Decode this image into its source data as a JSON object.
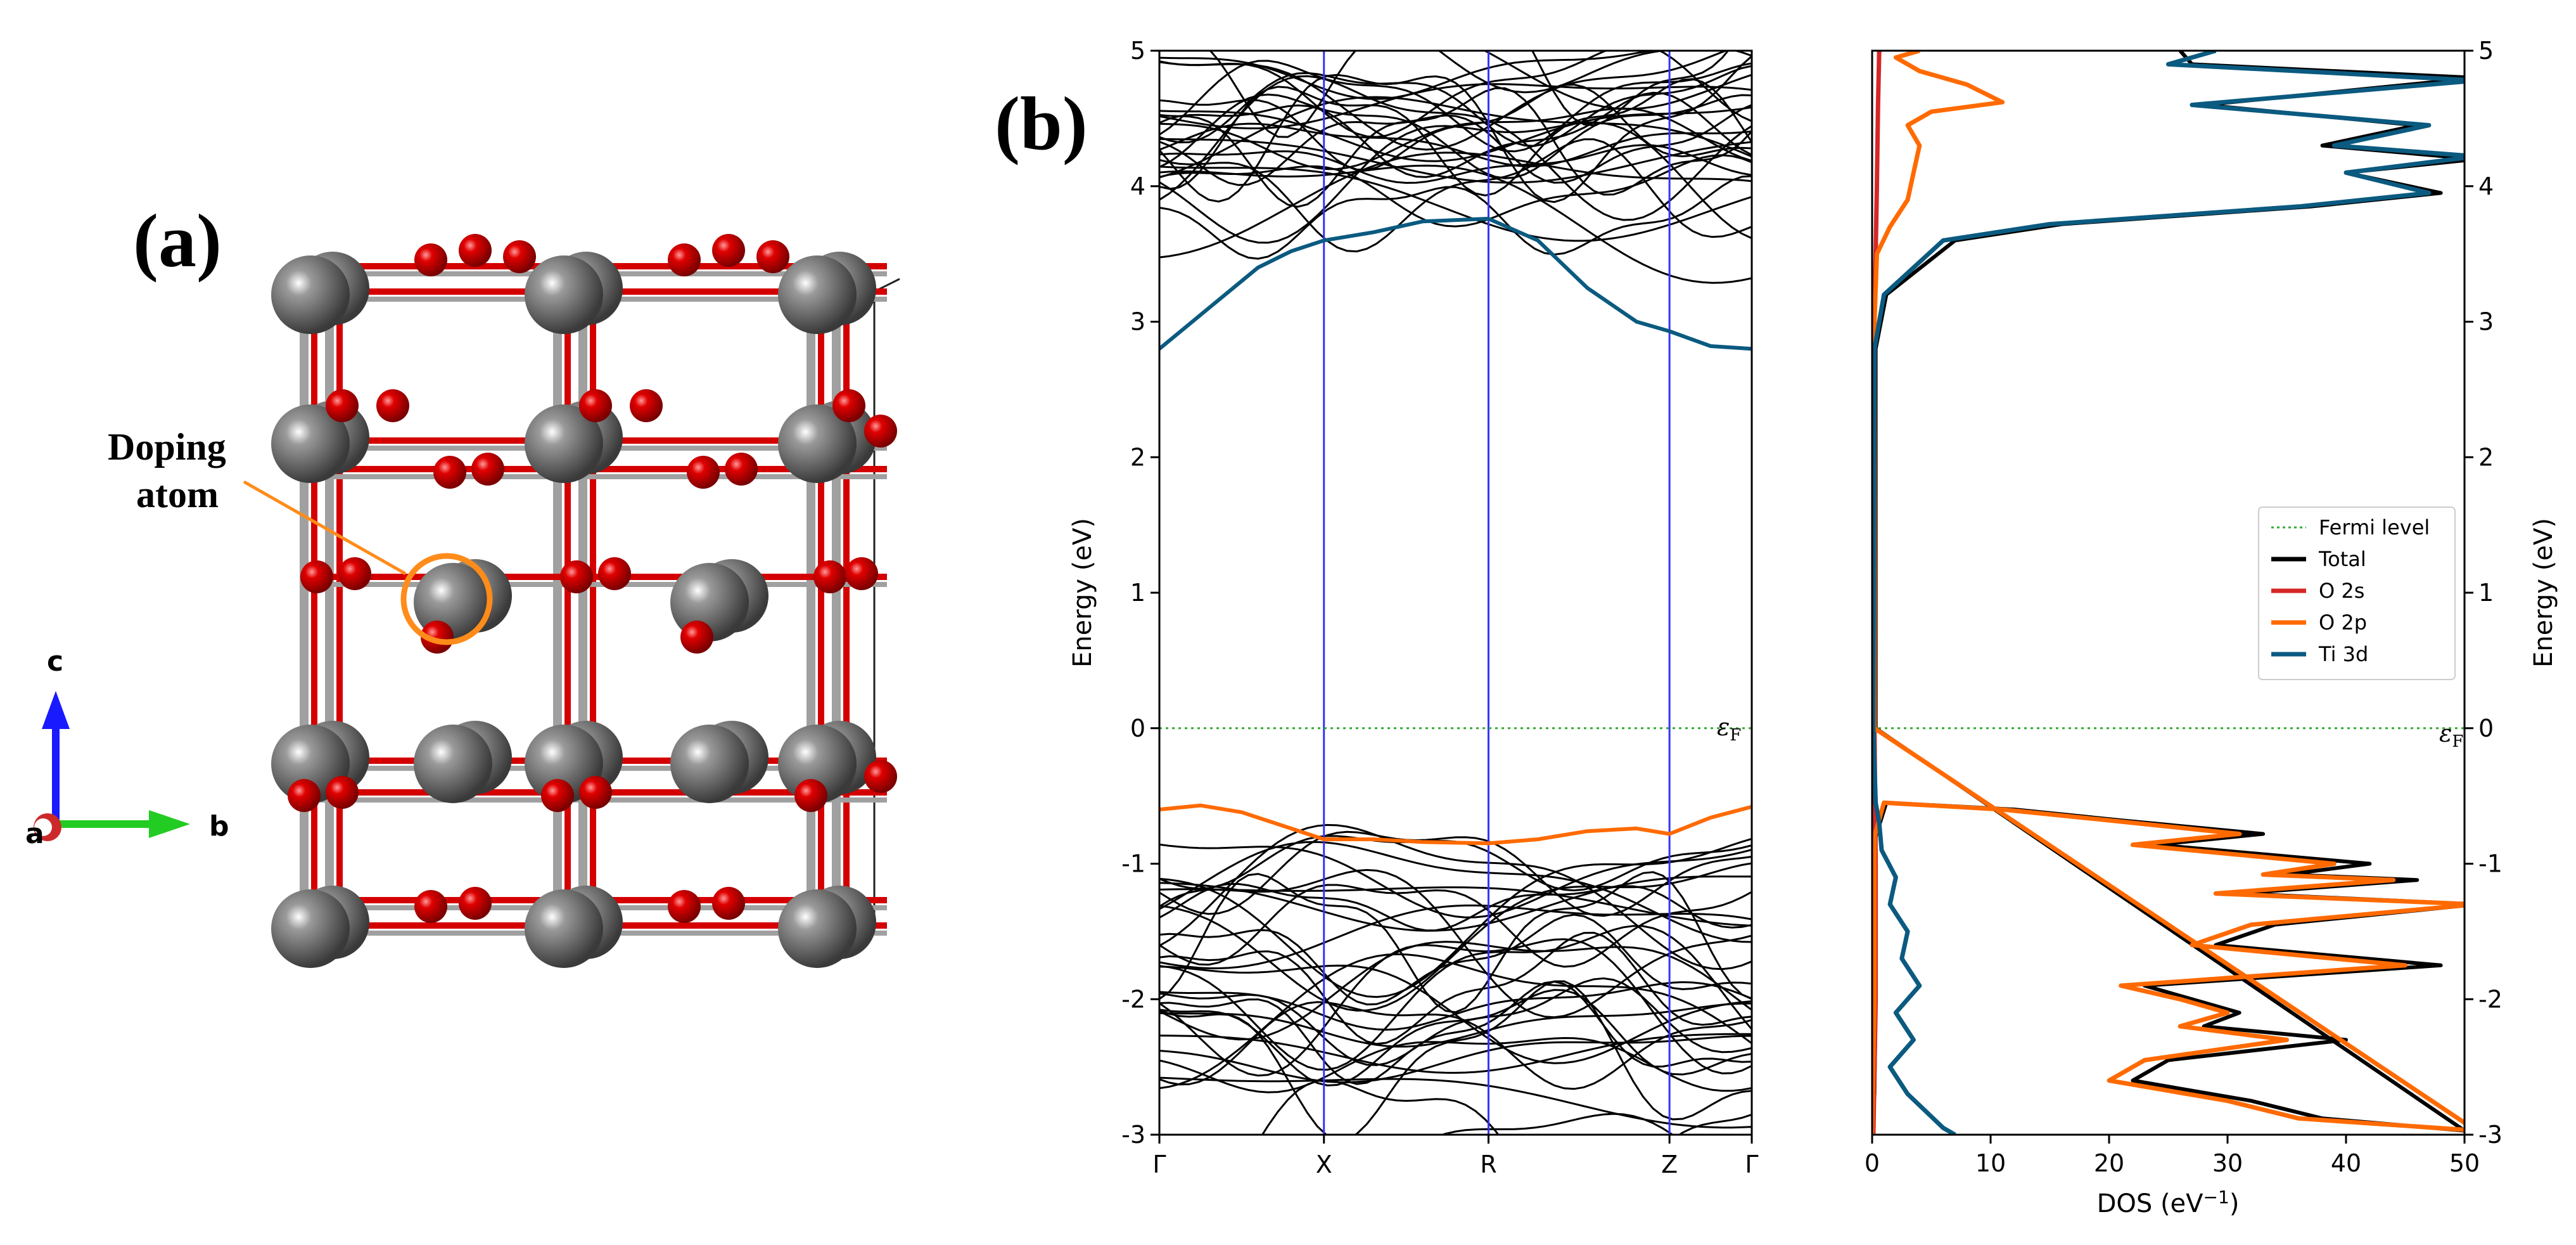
{
  "panels": {
    "a": {
      "label": "(a)"
    },
    "b": {
      "label": "(b)"
    }
  },
  "crystal": {
    "annotation_line1": "Doping",
    "annotation_line2": "atom",
    "axes": {
      "c": "c",
      "b": "b",
      "a": "a"
    },
    "colors": {
      "ti_atom": "#6e6e6e",
      "o_atom": "#d40000",
      "bond_gray": "#9a9a9a",
      "highlight": "#ff8c1a",
      "axis_c": "#1a1aff",
      "axis_b": "#22cc22"
    }
  },
  "chart_data": [
    {
      "type": "line",
      "title": "",
      "xlabel": "",
      "ylabel": "Energy (eV)",
      "ylim": [
        -3,
        5
      ],
      "y_ticks": [
        "-3",
        "-2",
        "-1",
        "0",
        "1",
        "2",
        "3",
        "4",
        "5"
      ],
      "k_points": [
        "Γ",
        "X",
        "R",
        "Z",
        "Γ"
      ],
      "k_positions": [
        0,
        1,
        2,
        3.1,
        3.6
      ],
      "fermi_label": "ε",
      "fermi_sub": "F",
      "fermi_energy": 0,
      "colors": {
        "bands": "#000000",
        "cbm": "#0b5a80",
        "vbm": "#ff6a00",
        "kline": "#3333ff",
        "fermi": "#33aa33"
      },
      "highlighted_bands": [
        {
          "name": "conduction band minimum",
          "color": "#0b5a80",
          "x": [
            0,
            0.3,
            0.6,
            0.8,
            1.0,
            1.3,
            1.6,
            2.0,
            2.3,
            2.6,
            2.9,
            3.1,
            3.35,
            3.6
          ],
          "y": [
            2.8,
            3.1,
            3.4,
            3.52,
            3.6,
            3.66,
            3.74,
            3.76,
            3.6,
            3.25,
            3.0,
            2.93,
            2.82,
            2.8
          ]
        },
        {
          "name": "valence band maximum",
          "color": "#ff6a00",
          "x": [
            0,
            0.25,
            0.5,
            0.8,
            1.0,
            1.3,
            1.6,
            2.0,
            2.3,
            2.6,
            2.9,
            3.1,
            3.35,
            3.6
          ],
          "y": [
            -0.6,
            -0.57,
            -0.62,
            -0.74,
            -0.82,
            -0.82,
            -0.84,
            -0.85,
            -0.82,
            -0.76,
            -0.74,
            -0.78,
            -0.66,
            -0.58
          ]
        }
      ]
    },
    {
      "type": "line",
      "title": "",
      "xlabel": "DOS (eV",
      "xlabel_sup": "−1",
      "xlabel_tail": ")",
      "ylabel": "Energy (eV)",
      "xlim": [
        0,
        50
      ],
      "ylim": [
        -3,
        5
      ],
      "x_ticks": [
        "0",
        "10",
        "20",
        "30",
        "40",
        "50"
      ],
      "y_ticks": [
        "-3",
        "-2",
        "-1",
        "0",
        "1",
        "2",
        "3",
        "4",
        "5"
      ],
      "fermi_label": "ε",
      "fermi_sub": "F",
      "legend": {
        "position": "right",
        "entries": [
          {
            "label": "Fermi level",
            "color": "#33aa33",
            "style": "dotted"
          },
          {
            "label": "Total",
            "color": "#000000",
            "style": "solid"
          },
          {
            "label": "O 2s",
            "color": "#d62728",
            "style": "solid"
          },
          {
            "label": "O 2p",
            "color": "#ff6a00",
            "style": "solid"
          },
          {
            "label": "Ti 3d",
            "color": "#0b5a80",
            "style": "solid"
          }
        ]
      },
      "series": [
        {
          "name": "Total",
          "color": "#000000",
          "points": [
            [
              0,
              -3
            ],
            [
              0.2,
              -2.7
            ],
            [
              0.3,
              -2.0
            ],
            [
              0.2,
              -1.2
            ],
            [
              0.3,
              -0.8
            ],
            [
              1.2,
              -0.55
            ],
            [
              12,
              -0.6
            ],
            [
              21,
              -0.68
            ],
            [
              33,
              -0.78
            ],
            [
              24,
              -0.86
            ],
            [
              42,
              -1.0
            ],
            [
              35,
              -1.08
            ],
            [
              46,
              -1.12
            ],
            [
              31,
              -1.22
            ],
            [
              51,
              -1.3
            ],
            [
              34,
              -1.45
            ],
            [
              29,
              -1.6
            ],
            [
              48,
              -1.75
            ],
            [
              23,
              -1.9
            ],
            [
              27,
              -2.0
            ],
            [
              31,
              -2.1
            ],
            [
              28,
              -2.2
            ],
            [
              40,
              -2.3
            ],
            [
              25,
              -2.45
            ],
            [
              22,
              -2.6
            ],
            [
              32,
              -2.75
            ],
            [
              38,
              -2.88
            ],
            [
              50,
              -2.97
            ],
            [
              0.3,
              0
            ],
            [
              0.3,
              2.8
            ],
            [
              1.2,
              3.2
            ],
            [
              7,
              3.6
            ],
            [
              16,
              3.72
            ],
            [
              37,
              3.85
            ],
            [
              48,
              3.95
            ],
            [
              40,
              4.1
            ],
            [
              51,
              4.2
            ],
            [
              38,
              4.3
            ],
            [
              46,
              4.45
            ],
            [
              28,
              4.6
            ],
            [
              51,
              4.8
            ],
            [
              27,
              4.9
            ],
            [
              26,
              5.0
            ]
          ]
        },
        {
          "name": "O 2s",
          "color": "#d62728",
          "points": [
            [
              0.1,
              -3
            ],
            [
              0.3,
              -2.0
            ],
            [
              0.3,
              -1.0
            ],
            [
              0.2,
              0
            ],
            [
              0.2,
              3.0
            ],
            [
              0.4,
              4.0
            ],
            [
              0.5,
              4.6
            ],
            [
              0.6,
              5.0
            ]
          ]
        },
        {
          "name": "O 2p",
          "color": "#ff6a00",
          "points": [
            [
              0,
              -3
            ],
            [
              0.2,
              -2.0
            ],
            [
              0.2,
              -0.8
            ],
            [
              1.0,
              -0.55
            ],
            [
              11,
              -0.6
            ],
            [
              20,
              -0.68
            ],
            [
              31,
              -0.78
            ],
            [
              22,
              -0.86
            ],
            [
              39,
              -1.0
            ],
            [
              33,
              -1.08
            ],
            [
              44,
              -1.12
            ],
            [
              29,
              -1.22
            ],
            [
              51,
              -1.3
            ],
            [
              32,
              -1.45
            ],
            [
              27,
              -1.6
            ],
            [
              45,
              -1.75
            ],
            [
              21,
              -1.9
            ],
            [
              26,
              -2.0
            ],
            [
              30,
              -2.1
            ],
            [
              26,
              -2.2
            ],
            [
              35,
              -2.3
            ],
            [
              23,
              -2.45
            ],
            [
              20,
              -2.6
            ],
            [
              30,
              -2.75
            ],
            [
              36,
              -2.88
            ],
            [
              51,
              -2.97
            ],
            [
              0.2,
              0
            ],
            [
              0.2,
              3.0
            ],
            [
              0.4,
              3.5
            ],
            [
              1.5,
              3.7
            ],
            [
              3,
              3.9
            ],
            [
              3.5,
              4.1
            ],
            [
              4,
              4.3
            ],
            [
              3,
              4.45
            ],
            [
              5,
              4.55
            ],
            [
              11,
              4.62
            ],
            [
              8,
              4.75
            ],
            [
              4,
              4.85
            ],
            [
              2,
              4.95
            ],
            [
              4,
              5.0
            ]
          ]
        },
        {
          "name": "Ti 3d",
          "color": "#0b5a80",
          "points": [
            [
              7,
              -3
            ],
            [
              6,
              -2.95
            ],
            [
              3,
              -2.7
            ],
            [
              1.5,
              -2.5
            ],
            [
              3.5,
              -2.3
            ],
            [
              2,
              -2.1
            ],
            [
              4,
              -1.9
            ],
            [
              2.5,
              -1.7
            ],
            [
              3,
              -1.5
            ],
            [
              1.5,
              -1.3
            ],
            [
              2,
              -1.1
            ],
            [
              0.8,
              -0.9
            ],
            [
              0.6,
              -0.7
            ],
            [
              0.3,
              -0.55
            ],
            [
              0.1,
              0
            ],
            [
              0.2,
              2.8
            ],
            [
              1.0,
              3.2
            ],
            [
              6,
              3.6
            ],
            [
              15,
              3.72
            ],
            [
              36,
              3.85
            ],
            [
              47,
              3.95
            ],
            [
              40,
              4.1
            ],
            [
              51,
              4.22
            ],
            [
              39,
              4.3
            ],
            [
              47,
              4.45
            ],
            [
              27,
              4.6
            ],
            [
              51,
              4.78
            ],
            [
              25,
              4.9
            ],
            [
              29,
              5.0
            ]
          ]
        }
      ]
    }
  ]
}
